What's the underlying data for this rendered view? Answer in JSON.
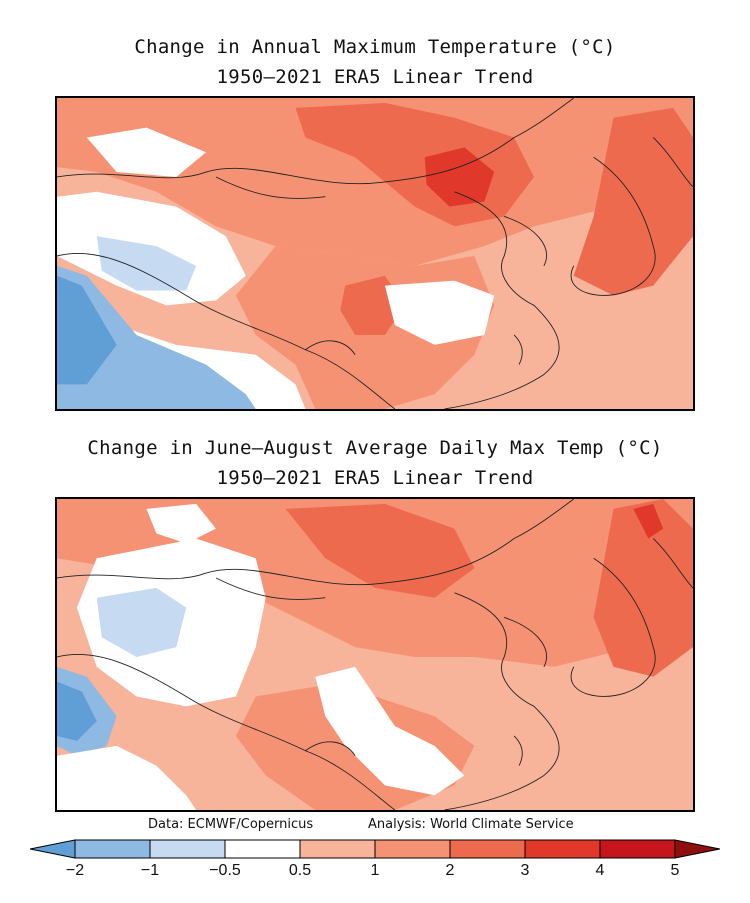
{
  "maps": [
    {
      "title_line1": "Change in Annual Maximum Temperature (°C)",
      "title_line2": "1950–2021 ERA5 Linear Trend"
    },
    {
      "title_line1": "Change in June–August Average Daily Max Temp (°C)",
      "title_line2": "1950–2021 ERA5 Linear Trend"
    }
  ],
  "credits": {
    "data": "Data: ECMWF/Copernicus",
    "analysis": "Analysis: World Climate Service"
  },
  "colorbar": {
    "labels": [
      "−2",
      "−1",
      "−0.5",
      "0.5",
      "1",
      "2",
      "3",
      "4",
      "5"
    ],
    "colors": [
      "#5f9fd6",
      "#8db9e3",
      "#c6daf2",
      "#ffffff",
      "#f8b39b",
      "#f59274",
      "#ee6a4e",
      "#e0392c",
      "#c4161c",
      "#8f0e0e"
    ],
    "units": "°C"
  },
  "palette": {
    "very_warm": "#e0392c",
    "warm": "#ee6a4e",
    "moderate": "#f59274",
    "mild": "#f8b39b",
    "neutral": "#ffffff",
    "cool_light": "#c6daf2",
    "cool": "#8db9e3",
    "coolest": "#5f9fd6",
    "hottest": "#c4161c"
  }
}
